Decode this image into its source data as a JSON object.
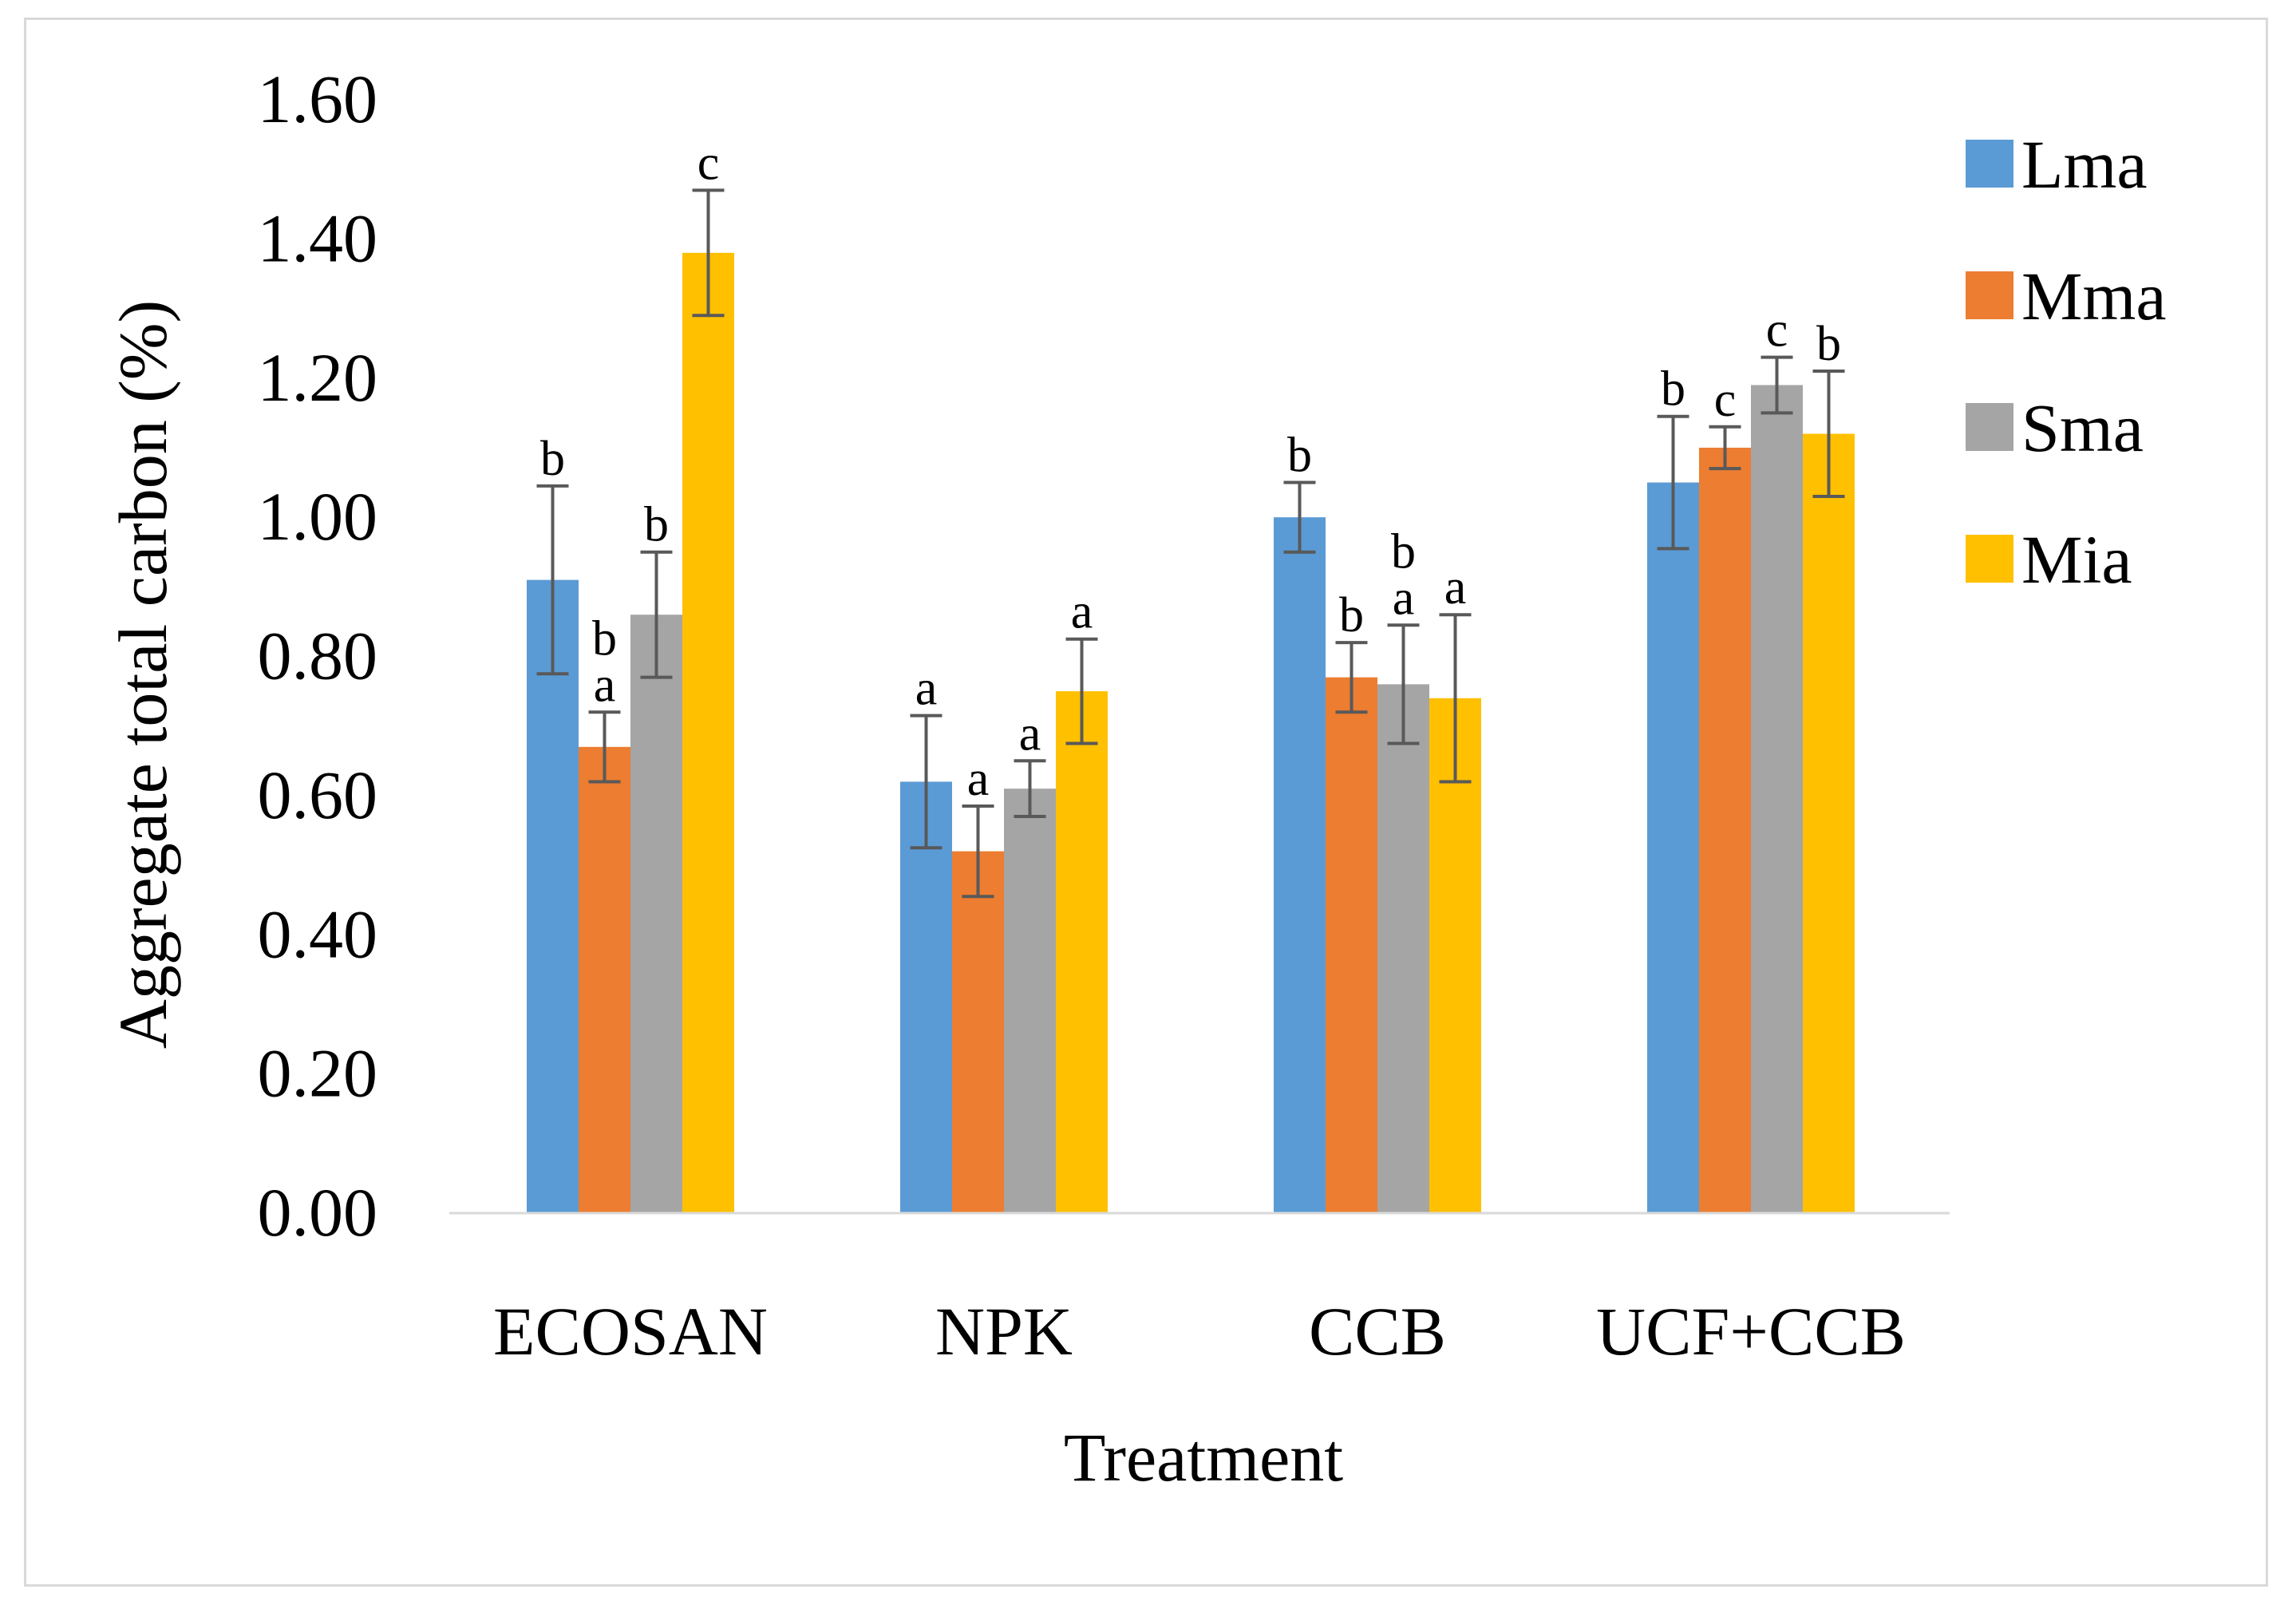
{
  "chart_data": {
    "type": "bar",
    "title": "",
    "xlabel": "Treatment",
    "ylabel": "Aggregate total carbon (%)",
    "ylim": [
      0,
      1.6
    ],
    "yticks": [
      "0.00",
      "0.20",
      "0.40",
      "0.60",
      "0.80",
      "1.00",
      "1.20",
      "1.40",
      "1.60"
    ],
    "grid": false,
    "legend_position": "top-right",
    "categories": [
      "ECOSAN",
      "NPK",
      "CCB",
      "UCF+CCB"
    ],
    "series": [
      {
        "name": "Lma",
        "color": "#5B9BD5",
        "values": [
          0.91,
          0.62,
          1.0,
          1.05
        ],
        "errors": [
          0.135,
          0.095,
          0.05,
          0.095
        ],
        "labels": [
          "b",
          "a",
          "b",
          "b"
        ]
      },
      {
        "name": "Mma",
        "color": "#ED7D31",
        "values": [
          0.67,
          0.52,
          0.77,
          1.1
        ],
        "errors": [
          0.05,
          0.065,
          0.05,
          0.03
        ],
        "labels": [
          "b\na",
          "a",
          "b",
          "c"
        ]
      },
      {
        "name": "Sma",
        "color": "#A5A5A5",
        "values": [
          0.86,
          0.61,
          0.76,
          1.19
        ],
        "errors": [
          0.09,
          0.04,
          0.085,
          0.04
        ],
        "labels": [
          "b",
          "a",
          "b\na",
          "c"
        ]
      },
      {
        "name": "Mia",
        "color": "#FFC000",
        "values": [
          1.38,
          0.75,
          0.74,
          1.12
        ],
        "errors": [
          0.09,
          0.075,
          0.12,
          0.09
        ],
        "labels": [
          "c",
          "a",
          "a",
          "b"
        ]
      }
    ]
  }
}
